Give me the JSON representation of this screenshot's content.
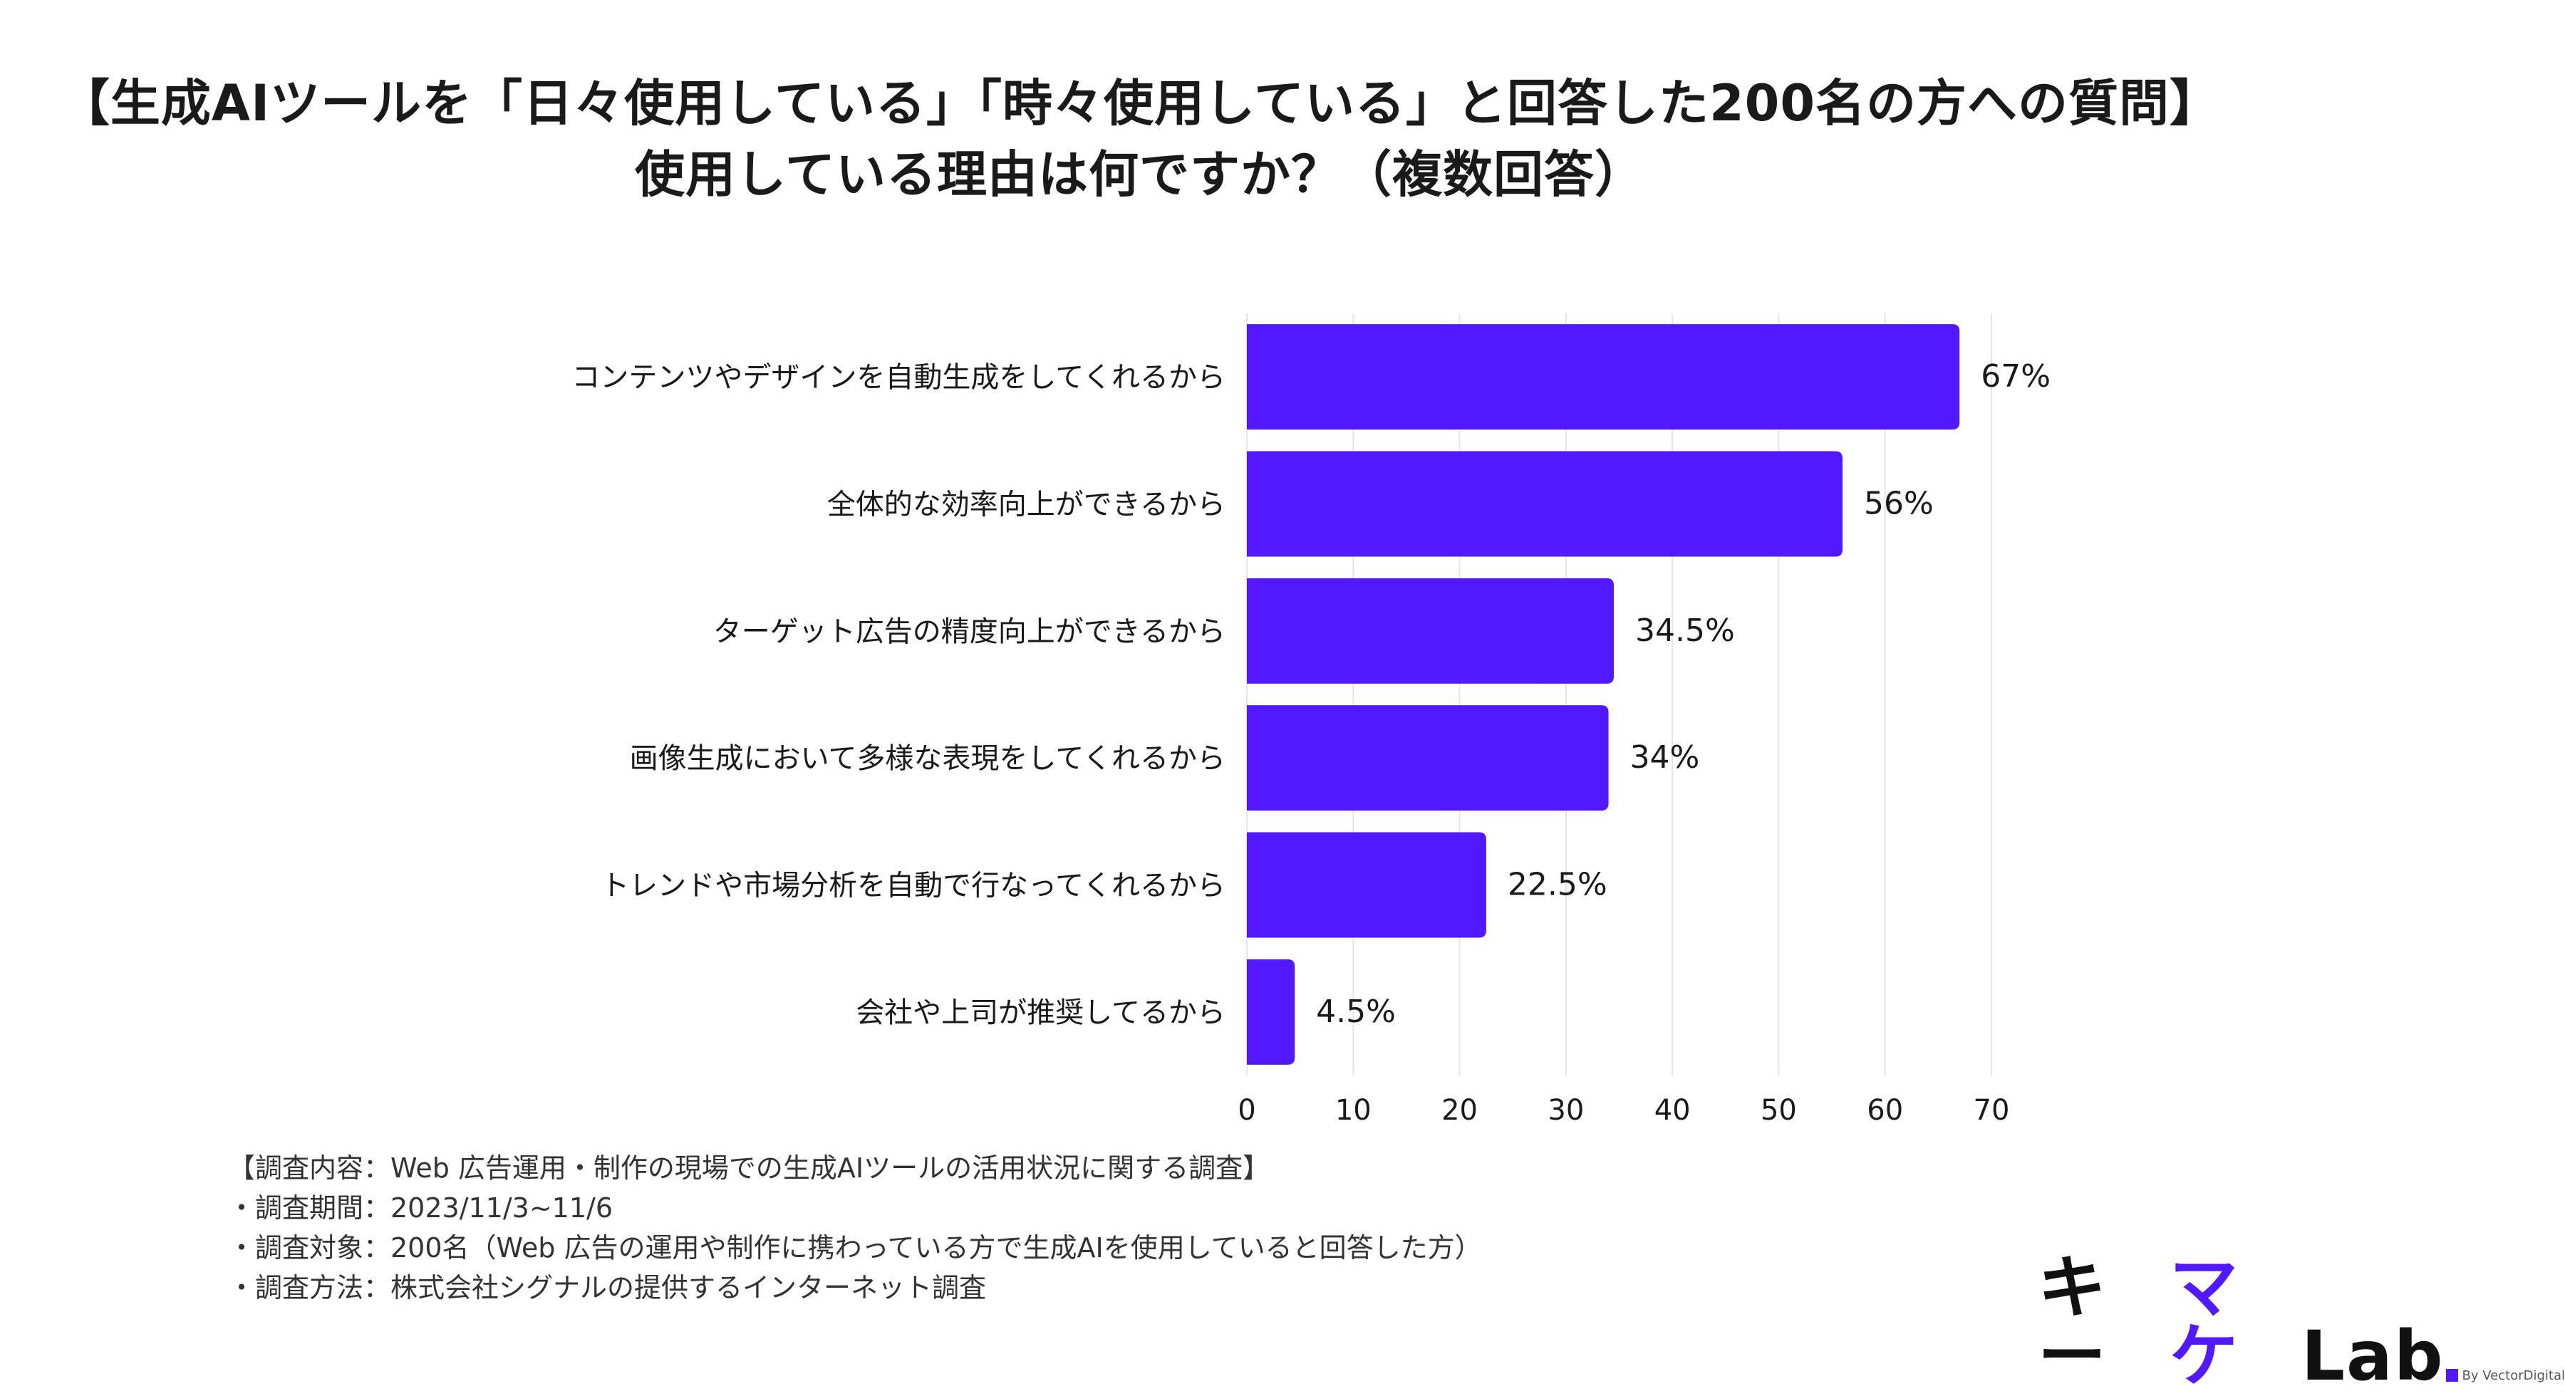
{
  "title_lines": [
    "【生成AIツールを「日々使用している」「時々使用している」と回答した200名の方への質問】",
    "使用している理由は何ですか？（複数回答）"
  ],
  "chart_data": {
    "type": "bar",
    "orientation": "horizontal",
    "categories": [
      "コンテンツやデザインを自動生成をしてくれるから",
      "全体的な効率向上ができるから",
      "ターゲット広告の精度向上ができるから",
      "画像生成において多様な表現をしてくれるから",
      "トレンドや市場分析を自動で行なってくれるから",
      "会社や上司が推奨してるから"
    ],
    "values": [
      67,
      56,
      34.5,
      34,
      22.5,
      4.5
    ],
    "value_labels": [
      "67%",
      "56%",
      "34.5%",
      "34%",
      "22.5%",
      "4.5%"
    ],
    "xlim": [
      0,
      70
    ],
    "xticks": [
      "0",
      "10",
      "20",
      "30",
      "40",
      "50",
      "60",
      "70"
    ],
    "grid": "vertical",
    "bar_color": "#5219ff"
  },
  "notes": [
    "【調査内容：Web 広告運用・制作の現場での生成AIツールの活用状況に関する調査】",
    "・調査期間：2023/11/3~11/6",
    "・調査対象：200名（Web 広告の運用や制作に携わっている方で生成AIを使用していると回答した方）",
    "・調査方法：株式会社シグナルの提供するインターネット調査"
  ],
  "logo": {
    "part1": "キー",
    "part2": "マケ",
    "part3": "Lab",
    "by": "By VectorDigital",
    "accent": "#5219ff"
  }
}
